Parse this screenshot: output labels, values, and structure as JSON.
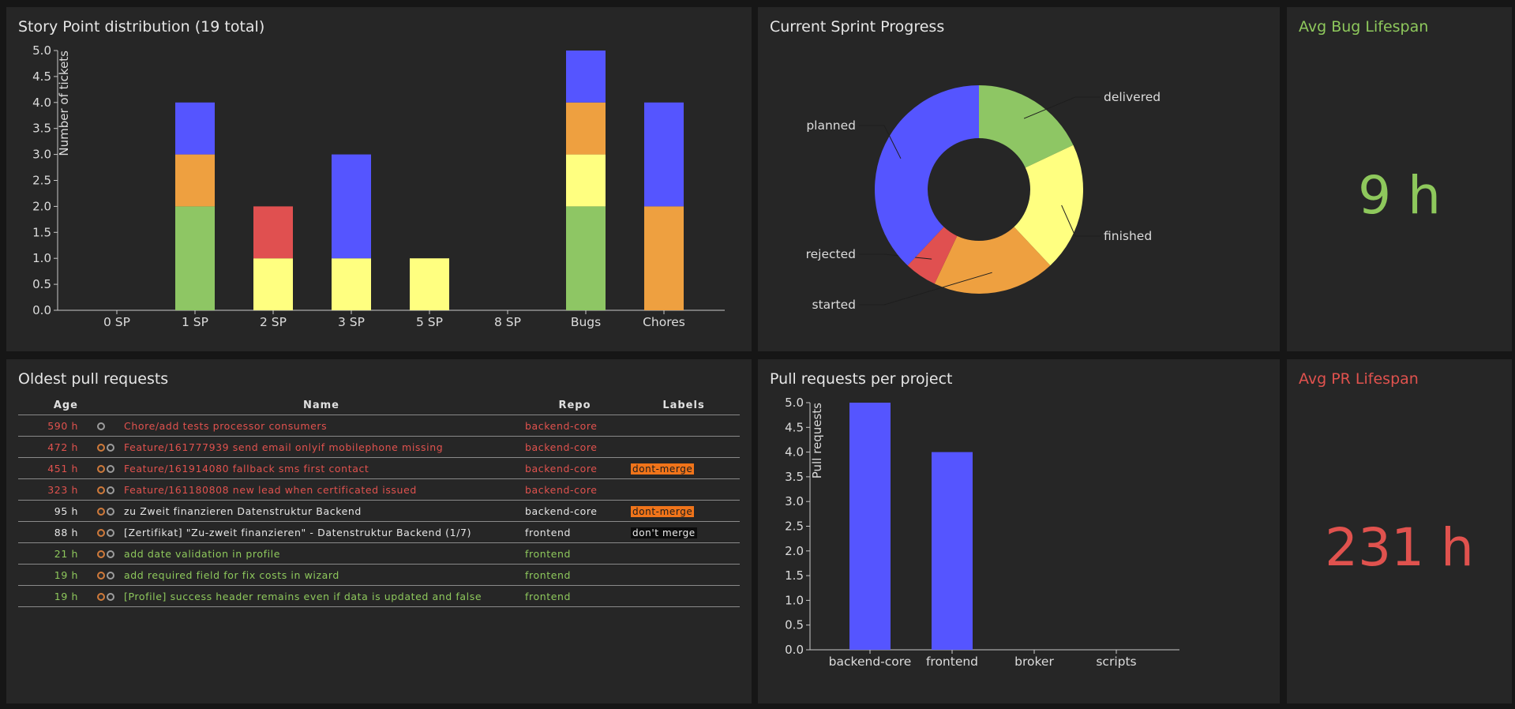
{
  "colors": {
    "blue": "#5555ff",
    "orange": "#eea040",
    "yellow": "#ffff80",
    "red": "#e05050",
    "green": "#8ec664",
    "axis": "#c8c8c8",
    "panel": "#262626",
    "accent_green": "#8ec85c",
    "accent_red": "#e0524e"
  },
  "story_points": {
    "title": "Story Point distribution (19 total)",
    "chart_data": {
      "type": "bar",
      "stacked": true,
      "categories": [
        "0 SP",
        "1 SP",
        "2 SP",
        "3 SP",
        "5 SP",
        "8 SP",
        "Bugs",
        "Chores"
      ],
      "ylabel": "Number of tickets",
      "ylim": [
        0,
        5
      ],
      "yticks": [
        "0.0",
        "0.5",
        "1.0",
        "1.5",
        "2.0",
        "2.5",
        "3.0",
        "3.5",
        "4.0",
        "4.5",
        "5.0"
      ],
      "series": [
        {
          "color": "#8ec664",
          "values": [
            0,
            2,
            0,
            0,
            0,
            0,
            2,
            0
          ]
        },
        {
          "color": "#ffff80",
          "values": [
            0,
            0,
            1,
            1,
            1,
            0,
            1,
            0
          ]
        },
        {
          "color": "#e05050",
          "values": [
            0,
            0,
            1,
            0,
            0,
            0,
            0,
            0
          ]
        },
        {
          "color": "#eea040",
          "values": [
            0,
            1,
            0,
            0,
            0,
            0,
            1,
            2
          ]
        },
        {
          "color": "#5555ff",
          "values": [
            0,
            1,
            0,
            2,
            0,
            0,
            1,
            2
          ]
        }
      ]
    }
  },
  "sprint": {
    "title": "Current Sprint Progress",
    "chart_data": {
      "type": "pie",
      "donut": true,
      "slices": [
        {
          "label": "delivered",
          "value": 18,
          "color": "#8ec664"
        },
        {
          "label": "finished",
          "value": 20,
          "color": "#ffff80"
        },
        {
          "label": "started",
          "value": 19,
          "color": "#eea040"
        },
        {
          "label": "rejected",
          "value": 5,
          "color": "#e05050"
        },
        {
          "label": "planned",
          "value": 38,
          "color": "#5555ff"
        }
      ]
    }
  },
  "bug_lifespan": {
    "title": "Avg Bug Lifespan",
    "value": "9 h"
  },
  "pr_lifespan": {
    "title": "Avg PR Lifespan",
    "value": "231 h"
  },
  "oldest_prs": {
    "title": "Oldest pull requests",
    "columns": [
      "Age",
      "Name",
      "Repo",
      "Labels"
    ],
    "rows": [
      {
        "age": "590 h",
        "avatar": false,
        "name": "Chore/add tests processor consumers",
        "repo": "backend-core",
        "label": "",
        "label_style": "",
        "tone": "red"
      },
      {
        "age": "472 h",
        "avatar": true,
        "name": "Feature/161777939 send email onlyif mobilephone missing",
        "repo": "backend-core",
        "label": "",
        "label_style": "",
        "tone": "red"
      },
      {
        "age": "451 h",
        "avatar": true,
        "name": "Feature/161914080 fallback sms first contact",
        "repo": "backend-core",
        "label": "dont-merge",
        "label_style": "lbl-dontmerge",
        "tone": "red"
      },
      {
        "age": "323 h",
        "avatar": true,
        "name": "Feature/161180808 new lead when certificated issued",
        "repo": "backend-core",
        "label": "",
        "label_style": "",
        "tone": "red"
      },
      {
        "age": "95 h",
        "avatar": true,
        "name": "zu Zweit finanzieren Datenstruktur Backend",
        "repo": "backend-core",
        "label": "dont-merge",
        "label_style": "lbl-dontmerge",
        "tone": "white"
      },
      {
        "age": "88 h",
        "avatar": true,
        "name": "[Zertifikat] \"Zu-zweit finanzieren\" - Datenstruktur Backend (1/7)",
        "repo": "frontend",
        "label": "don't merge",
        "label_style": "lbl-dontmerge2",
        "tone": "white"
      },
      {
        "age": "21 h",
        "avatar": true,
        "name": "add date validation in profile",
        "repo": "frontend",
        "label": "",
        "label_style": "",
        "tone": "green"
      },
      {
        "age": "19 h",
        "avatar": true,
        "name": "add required field for fix costs in wizard",
        "repo": "frontend",
        "label": "",
        "label_style": "",
        "tone": "green"
      },
      {
        "age": "19 h",
        "avatar": true,
        "name": "[Profile] success header remains even if data is updated and false",
        "repo": "frontend",
        "label": "",
        "label_style": "",
        "tone": "green"
      }
    ]
  },
  "pr_per_project": {
    "title": "Pull requests per project",
    "chart_data": {
      "type": "bar",
      "categories": [
        "backend-core",
        "frontend",
        "broker",
        "scripts"
      ],
      "values": [
        5,
        4,
        0,
        0
      ],
      "ylabel": "Pull requests",
      "ylim": [
        0,
        5
      ],
      "yticks": [
        "0.0",
        "0.5",
        "1.0",
        "1.5",
        "2.0",
        "2.5",
        "3.0",
        "3.5",
        "4.0",
        "4.5",
        "5.0"
      ],
      "color": "#5555ff"
    }
  }
}
